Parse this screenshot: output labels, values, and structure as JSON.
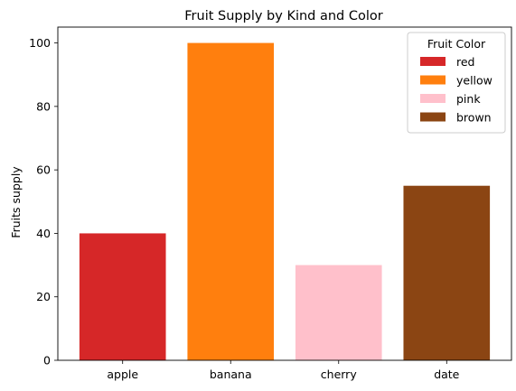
{
  "chart_data": {
    "type": "bar",
    "title": "Fruit Supply by Kind and Color",
    "xlabel": "",
    "ylabel": "Fruits supply",
    "categories": [
      "apple",
      "banana",
      "cherry",
      "date"
    ],
    "values": [
      40,
      100,
      30,
      55
    ],
    "bar_colors": [
      "#d62728",
      "#ff7f0e",
      "#ffc0cb",
      "#8b4513"
    ],
    "ylim": [
      0,
      105
    ],
    "yticks": [
      0,
      20,
      40,
      60,
      80,
      100
    ],
    "grid": false,
    "legend": {
      "title": "Fruit Color",
      "placement": "top-right",
      "entries": [
        {
          "label": "red",
          "color": "#d62728"
        },
        {
          "label": "yellow",
          "color": "#ff7f0e"
        },
        {
          "label": "pink",
          "color": "#ffc0cb"
        },
        {
          "label": "brown",
          "color": "#8b4513"
        }
      ]
    }
  }
}
